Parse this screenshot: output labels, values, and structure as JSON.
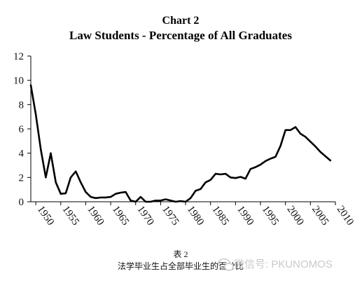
{
  "chart_data": {
    "type": "line",
    "title": "Chart 2",
    "subtitle": "Law Students - Percentage of All Graduates",
    "xlabel": "",
    "ylabel": "",
    "xlim": [
      1949,
      2010
    ],
    "ylim": [
      0,
      12
    ],
    "y_ticks": [
      "0",
      "2",
      "4",
      "6",
      "8",
      "10",
      "12"
    ],
    "x_ticks": [
      "1950",
      "1955",
      "1960",
      "1965",
      "1970",
      "1975",
      "1980",
      "1985",
      "1990",
      "1995",
      "2000",
      "2005",
      "2010"
    ],
    "grid": false,
    "legend": "none",
    "line_color": "#000000",
    "series": [
      {
        "x": [
          1949,
          1950,
          1951,
          1952,
          1953,
          1954,
          1955,
          1956,
          1957,
          1958,
          1959,
          1960,
          1961,
          1962,
          1963,
          1964,
          1965,
          1966,
          1967,
          1968,
          1969,
          1970,
          1971,
          1972,
          1973,
          1974,
          1975,
          1976,
          1977,
          1978,
          1979,
          1980,
          1981,
          1982,
          1983,
          1984,
          1985,
          1986,
          1987,
          1988,
          1989,
          1990,
          1991,
          1992,
          1993,
          1994,
          1995,
          1996,
          1997,
          1998,
          1999,
          2000,
          2001,
          2002,
          2003,
          2004,
          2005,
          2006,
          2007,
          2008,
          2009
        ],
        "y": [
          9.6,
          7.2,
          4.3,
          2.0,
          4.0,
          1.6,
          0.65,
          0.7,
          2.0,
          2.5,
          1.6,
          0.8,
          0.4,
          0.3,
          0.35,
          0.35,
          0.4,
          0.65,
          0.75,
          0.8,
          0.1,
          0.0,
          0.4,
          0.0,
          0.0,
          0.1,
          0.1,
          0.2,
          0.1,
          0.0,
          0.05,
          0.0,
          0.3,
          0.9,
          1.05,
          1.6,
          1.8,
          2.3,
          2.25,
          2.3,
          2.0,
          1.95,
          2.05,
          1.9,
          2.7,
          2.85,
          3.05,
          3.35,
          3.55,
          3.7,
          4.6,
          5.9,
          5.9,
          6.15,
          5.6,
          5.35,
          4.95,
          4.55,
          4.1,
          3.75,
          3.4
        ]
      }
    ],
    "caption_line1": "表 2",
    "caption_line2": "法学毕业生占全部毕业生的百分比",
    "watermark": "微信号: PKUNOMOS"
  }
}
